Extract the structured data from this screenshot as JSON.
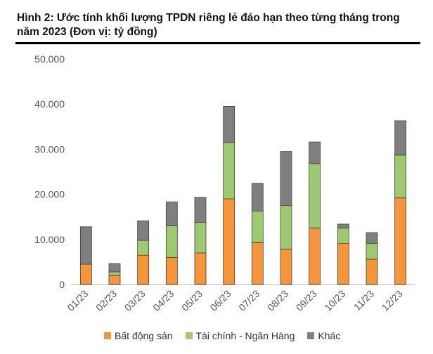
{
  "title": "Hình 2: Ước tính khối lượng TPDN riêng lẻ đáo hạn theo từng tháng trong năm 2023 (Đơn vị: tỷ đồng)",
  "chart_data": {
    "type": "bar",
    "stacked": true,
    "categories": [
      "01/23",
      "02/23",
      "03/23",
      "04/23",
      "05/23",
      "06/23",
      "07/23",
      "08/23",
      "09/23",
      "10/23",
      "11/23",
      "12/23"
    ],
    "series": [
      {
        "name": "Bất động sản",
        "color": "#f7953a",
        "values": [
          4500,
          2000,
          6500,
          6000,
          7000,
          19000,
          9300,
          7800,
          12500,
          9100,
          5600,
          19200
        ]
      },
      {
        "name": "Tài chính - Ngân Hàng",
        "color": "#9dc970",
        "values": [
          0,
          800,
          3300,
          7000,
          6800,
          12500,
          7000,
          9700,
          14300,
          3400,
          3500,
          9500
        ]
      },
      {
        "name": "Khác",
        "color": "#7f7f7f",
        "values": [
          8300,
          1800,
          4300,
          5300,
          5500,
          8000,
          6100,
          12000,
          4800,
          900,
          2400,
          7600
        ]
      }
    ],
    "ylim": [
      0,
      50000
    ],
    "yticks": [
      0,
      10000,
      20000,
      30000,
      40000,
      50000
    ],
    "ytick_labels": [
      "0",
      "10.000",
      "20.000",
      "30.000",
      "40.000",
      "50.000"
    ],
    "legend_position": "bottom"
  }
}
